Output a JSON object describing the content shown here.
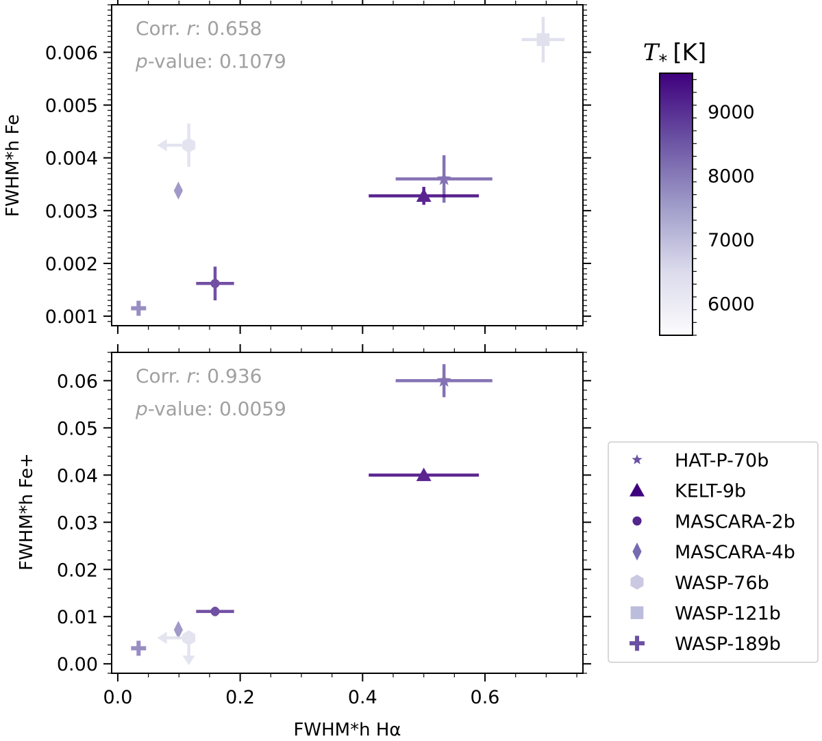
{
  "chart_data": [
    {
      "type": "scatter",
      "panel": "top",
      "xlabel": "FWHM*h Hα",
      "ylabel": "FWHM*h Fe",
      "xlim": [
        -0.01,
        0.76
      ],
      "ylim": [
        0.00082,
        0.0069
      ],
      "x_ticks": [],
      "y_ticks": [
        0.001,
        0.002,
        0.003,
        0.004,
        0.005,
        0.006
      ],
      "annotation": {
        "corr_label": "Corr. ",
        "corr_var": "r",
        "corr_value": ": 0.658",
        "p_var": "p",
        "p_value": "-value: 0.1079"
      },
      "points": [
        {
          "series": "HAT-P-70b",
          "x": 0.533,
          "y": 0.0036,
          "xerr": 0.079,
          "yerr": 0.00045,
          "temp": 8450,
          "marker": "star"
        },
        {
          "series": "KELT-9b",
          "x": 0.5,
          "y": 0.00328,
          "xerr": 0.09,
          "yerr": 0.00017,
          "temp": 9600,
          "marker": "triangle"
        },
        {
          "series": "MASCARA-2b",
          "x": 0.159,
          "y": 0.00162,
          "xerr": 0.031,
          "yerr": 0.00032,
          "temp": 8980,
          "marker": "circle"
        },
        {
          "series": "MASCARA-4b",
          "x": 0.099,
          "y": 0.00338,
          "xerr": 0.002,
          "yerr": 0.0001,
          "temp": 7800,
          "marker": "diamond"
        },
        {
          "series": "WASP-76b",
          "x": 0.116,
          "y": 0.00424,
          "xerr": 0.0,
          "yerr": 0.00041,
          "temp": 6330,
          "marker": "hexagon",
          "upper_limit": "x"
        },
        {
          "series": "WASP-121b",
          "x": 0.695,
          "y": 0.00624,
          "xerr": 0.035,
          "yerr": 0.00043,
          "temp": 6460,
          "marker": "square"
        },
        {
          "series": "WASP-189b",
          "x": 0.034,
          "y": 0.00115,
          "xerr": 0.003,
          "yerr": 0.0001,
          "temp": 8000,
          "marker": "plus"
        }
      ]
    },
    {
      "type": "scatter",
      "panel": "bottom",
      "xlabel": "FWHM*h Hα",
      "ylabel": "FWHM*h Fe+",
      "xlim": [
        -0.01,
        0.76
      ],
      "ylim": [
        -0.002,
        0.066
      ],
      "x_ticks": [
        "0.0",
        "0.2",
        "0.4",
        "0.6"
      ],
      "x_tick_values": [
        0.0,
        0.2,
        0.4,
        0.6
      ],
      "y_ticks": [
        "0.00",
        "0.01",
        "0.02",
        "0.03",
        "0.04",
        "0.05",
        "0.06"
      ],
      "y_tick_values": [
        0.0,
        0.01,
        0.02,
        0.03,
        0.04,
        0.05,
        0.06
      ],
      "annotation": {
        "corr_label": "Corr. ",
        "corr_var": "r",
        "corr_value": ": 0.936",
        "p_var": "p",
        "p_value": "-value: 0.0059"
      },
      "points": [
        {
          "series": "HAT-P-70b",
          "x": 0.533,
          "y": 0.06,
          "xerr": 0.079,
          "yerr": 0.0035,
          "temp": 8450,
          "marker": "star"
        },
        {
          "series": "KELT-9b",
          "x": 0.5,
          "y": 0.04,
          "xerr": 0.09,
          "yerr": 0.0008,
          "temp": 9600,
          "marker": "triangle"
        },
        {
          "series": "MASCARA-2b",
          "x": 0.159,
          "y": 0.0111,
          "xerr": 0.031,
          "yerr": 0.001,
          "temp": 8980,
          "marker": "circle"
        },
        {
          "series": "MASCARA-4b",
          "x": 0.099,
          "y": 0.0072,
          "xerr": 0.002,
          "yerr": 0.0012,
          "temp": 7800,
          "marker": "diamond"
        },
        {
          "series": "WASP-76b",
          "x": 0.116,
          "y": 0.0055,
          "xerr": 0.0,
          "yerr": 0.0,
          "temp": 6330,
          "marker": "hexagon",
          "upper_limit": "xy"
        },
        {
          "series": "WASP-189b",
          "x": 0.034,
          "y": 0.0033,
          "xerr": 0.004,
          "yerr": 0.0012,
          "temp": 8000,
          "marker": "plus"
        }
      ]
    }
  ],
  "top_yticks_text": [
    "0.001",
    "0.002",
    "0.003",
    "0.004",
    "0.005",
    "0.006"
  ],
  "colorbar": {
    "label_var": "T",
    "label_sub": "*",
    "label_unit": "[K]",
    "range": [
      5500,
      9600
    ],
    "ticks": [
      6000,
      7000,
      8000,
      9000
    ],
    "tick_labels": [
      "6000",
      "7000",
      "8000",
      "9000"
    ],
    "colors": [
      "#f4f2fa",
      "#3f007d"
    ]
  },
  "legend": {
    "position": "right",
    "entries": [
      {
        "label": "HAT-P-70b",
        "marker": "star",
        "color": "#6a51a3"
      },
      {
        "label": "KELT-9b",
        "marker": "triangle",
        "color": "#3f007d"
      },
      {
        "label": "MASCARA-2b",
        "marker": "circle",
        "color": "#54278f"
      },
      {
        "label": "MASCARA-4b",
        "marker": "diamond",
        "color": "#756bb1"
      },
      {
        "label": "WASP-76b",
        "marker": "hexagon",
        "color": "#cbc9e2"
      },
      {
        "label": "WASP-121b",
        "marker": "square",
        "color": "#bcbddc"
      },
      {
        "label": "WASP-189b",
        "marker": "plus",
        "color": "#6a51a3"
      }
    ]
  }
}
